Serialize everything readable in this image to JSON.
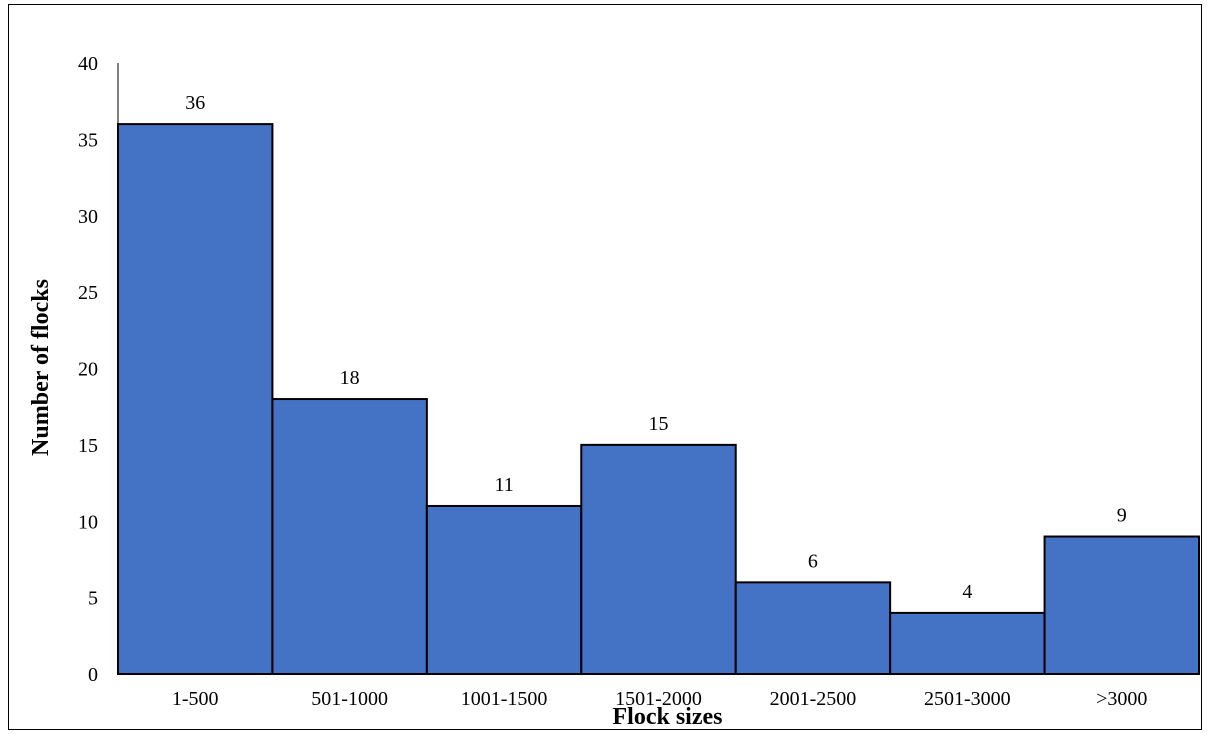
{
  "chart_data": {
    "type": "bar",
    "categories": [
      "1-500",
      "501-1000",
      "1001-1500",
      "1501-2000",
      "2001-2500",
      "2501-3000",
      ">3000"
    ],
    "values": [
      36,
      18,
      11,
      15,
      6,
      4,
      9
    ],
    "data_labels": [
      "36",
      "18",
      "11",
      "15",
      "6",
      "4",
      "9"
    ],
    "title": "",
    "xlabel": "Flock sizes",
    "ylabel": "Number of flocks",
    "ylim": [
      0,
      40
    ],
    "yticks": [
      0,
      5,
      10,
      15,
      20,
      25,
      30,
      35,
      40
    ],
    "grid": false,
    "legend": "none",
    "bar_color": "#4472C4",
    "bar_edge_color": "#000000"
  }
}
